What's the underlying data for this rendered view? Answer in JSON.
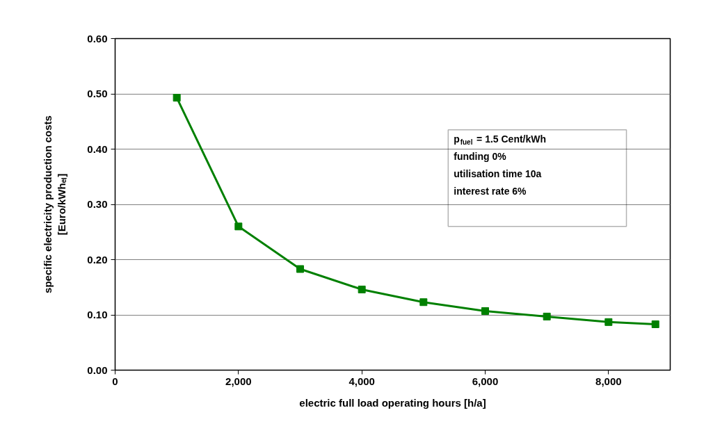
{
  "chart_data": {
    "type": "line",
    "xlabel": "electric full load operating hours [h/a]",
    "ylabel": "specific electricity production costs\n[Euro/kWhₑₗ]",
    "x": [
      1000,
      2000,
      3000,
      4000,
      5000,
      6000,
      7000,
      8000,
      8760
    ],
    "series": [
      {
        "color": "#008000",
        "values": [
          0.493,
          0.26,
          0.183,
          0.146,
          0.123,
          0.107,
          0.097,
          0.087,
          0.083
        ]
      }
    ],
    "xlim": [
      0,
      9000
    ],
    "xticks": [
      0,
      {
        "value": 2000,
        "label": "2,000"
      },
      {
        "value": 4000,
        "label": "4,000"
      },
      {
        "value": 6000,
        "label": "6,000"
      },
      {
        "value": 8000,
        "label": "8,000"
      }
    ],
    "ylim": [
      0,
      0.6
    ],
    "yticks": [
      {
        "value": 0,
        "label": "0.00"
      },
      {
        "value": 0.1,
        "label": "0.10"
      },
      {
        "value": 0.2,
        "label": "0.20"
      },
      {
        "value": 0.3,
        "label": "0.30"
      },
      {
        "value": 0.4,
        "label": "0.40"
      },
      {
        "value": 0.5,
        "label": "0.50"
      },
      {
        "value": 0.6,
        "label": "0.60"
      }
    ],
    "grid": "y",
    "marker": "square",
    "annotations": [
      "p$_{fuel}$ = 1.5 Cent/kWh\nfunding 0%\nutilisation time 10a\ninterest rate 6%"
    ]
  }
}
